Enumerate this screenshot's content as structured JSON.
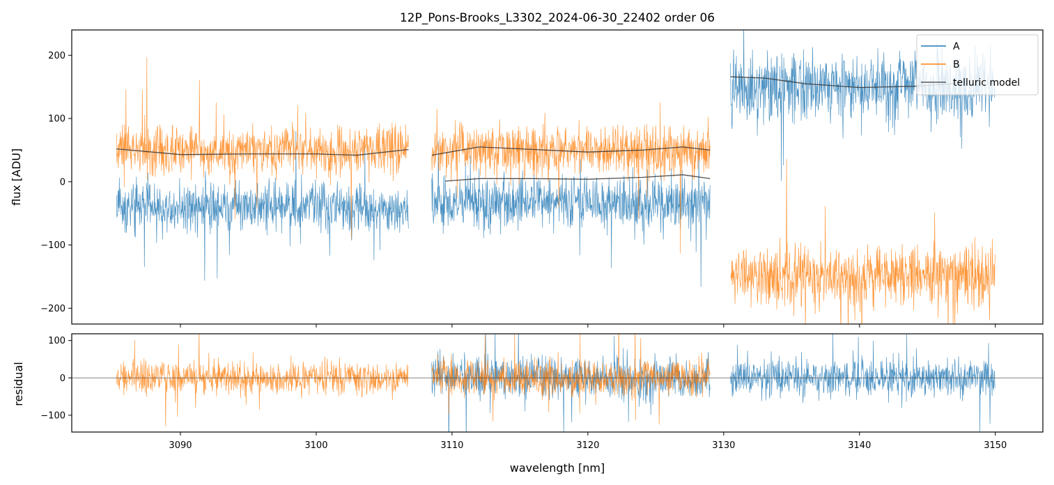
{
  "chart_data": [
    {
      "type": "line",
      "panel": "top",
      "title": "12P_Pons-Brooks_L3302_2024-06-30_22402  order 06",
      "xlabel": "",
      "ylabel": "flux [ADU]",
      "xlim": [
        3082,
        3153.5
      ],
      "ylim": [
        -225,
        240
      ],
      "yticks": [
        -200,
        -100,
        0,
        100,
        200
      ],
      "yticklabels": [
        "−200",
        "−100",
        "0",
        "100",
        "200"
      ],
      "xticks": [
        3090,
        3100,
        3110,
        3120,
        3130,
        3140,
        3150
      ],
      "legend": {
        "placement": "top-right",
        "entries": [
          {
            "label": "A",
            "color": "#1f77b4"
          },
          {
            "label": "B",
            "color": "#ff7f0e"
          },
          {
            "label": "telluric model",
            "color": "#333333"
          }
        ]
      },
      "segments": [
        {
          "x_range": [
            3085.3,
            3106.8
          ],
          "A_level": -40,
          "A_noise": 32,
          "B_level": 50,
          "B_noise": 32
        },
        {
          "x_range": [
            3108.5,
            3129.0
          ],
          "A_level": -35,
          "A_noise": 34,
          "B_level": 50,
          "B_noise": 34
        },
        {
          "x_range": [
            3130.5,
            3150.0
          ],
          "A_level": 150,
          "A_noise": 45,
          "B_level": -150,
          "B_noise": 40
        }
      ],
      "series": [
        {
          "name": "telluric model (B, seg 1)",
          "x": [
            3085.3,
            3090,
            3095,
            3100,
            3103,
            3106.8
          ],
          "y": [
            52,
            43,
            44,
            44,
            42,
            51
          ]
        },
        {
          "name": "telluric model (B, seg 2)",
          "x": [
            3108.5,
            3112,
            3116,
            3120,
            3124,
            3127,
            3129
          ],
          "y": [
            42,
            55,
            51,
            47,
            50,
            55,
            50
          ]
        },
        {
          "name": "telluric model (A, seg 2)",
          "x": [
            3109.5,
            3112,
            3116,
            3120,
            3124,
            3127,
            3129
          ],
          "y": [
            1,
            5,
            5,
            4,
            7,
            11,
            5
          ]
        },
        {
          "name": "telluric model (A, seg 3)",
          "x": [
            3130.5,
            3133,
            3136,
            3140,
            3144,
            3147
          ],
          "y": [
            166,
            164,
            155,
            149,
            151,
            155
          ]
        }
      ]
    },
    {
      "type": "line",
      "panel": "bottom",
      "title": "",
      "xlabel": "wavelength [nm]",
      "ylabel": "residual",
      "xlim": [
        3082,
        3153.5
      ],
      "ylim": [
        -145,
        118
      ],
      "yticks": [
        -100,
        0,
        100
      ],
      "yticklabels": [
        "−100",
        "0",
        "100"
      ],
      "xticks": [
        3090,
        3100,
        3110,
        3120,
        3130,
        3140,
        3150
      ],
      "xticklabels": [
        "3090",
        "3100",
        "3110",
        "3120",
        "3130",
        "3140",
        "3150"
      ],
      "zero_line": 0,
      "segments": [
        {
          "x_range": [
            3085.3,
            3106.8
          ],
          "series": "B",
          "noise": 34
        },
        {
          "x_range": [
            3108.5,
            3129.0
          ],
          "series": "A",
          "noise": 45
        },
        {
          "x_range": [
            3108.5,
            3129.0
          ],
          "series": "B",
          "noise": 40
        },
        {
          "x_range": [
            3130.5,
            3150.0
          ],
          "series": "A",
          "noise": 42
        }
      ]
    }
  ],
  "colors": {
    "A": "#1f77b4",
    "B": "#ff7f0e",
    "model": "#333333"
  }
}
